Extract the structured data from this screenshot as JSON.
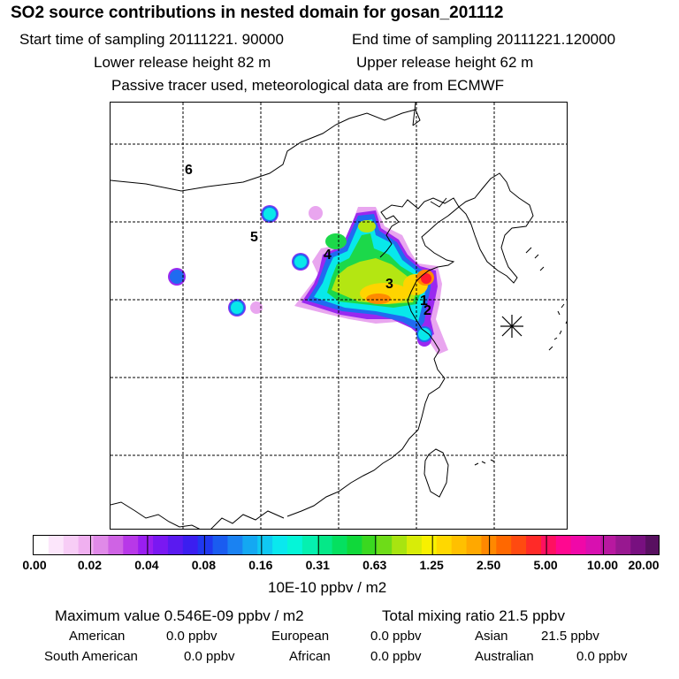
{
  "header": {
    "title": "SO2 source contributions in nested domain for gosan_201112",
    "start_time": "Start time of sampling 20111221. 90000",
    "end_time": "End time of sampling 20111221.120000",
    "lower_height": "Lower release height   82 m",
    "upper_height": "Upper release height   62 m",
    "tracer_note": "Passive tracer used, meteorological data are from ECMWF"
  },
  "map": {
    "source_labels": [
      "1",
      "2",
      "3",
      "4",
      "5",
      "6"
    ],
    "receptor_marker": "asterisk-icon"
  },
  "colorbar": {
    "ticks": [
      "0.00",
      "0.02",
      "0.04",
      "0.08",
      "0.16",
      "0.31",
      "0.63",
      "1.25",
      "2.50",
      "5.00",
      "10.00",
      "20.00"
    ],
    "unit": "10E-10 ppbv / m2",
    "colors": [
      "#ffffff",
      "#fce6fb",
      "#f7cdf6",
      "#f0b0f0",
      "#e08ae8",
      "#cf63e4",
      "#b838e8",
      "#9a1ef0",
      "#7a18f2",
      "#5a1af0",
      "#3b1ef0",
      "#2038f0",
      "#1a5cf0",
      "#1a82f2",
      "#14a8f2",
      "#10c8f2",
      "#0ae8ee",
      "#05f5d8",
      "#05f0b0",
      "#05e888",
      "#05e060",
      "#10d83a",
      "#3ad820",
      "#6edc18",
      "#a8e410",
      "#d8ec08",
      "#f8f000",
      "#ffd800",
      "#ffc000",
      "#ffa800",
      "#ff8800",
      "#ff6800",
      "#ff4a10",
      "#ff2a28",
      "#ff1060",
      "#ff0890",
      "#f008a8",
      "#d810b0",
      "#b818a0",
      "#981890",
      "#781080",
      "#581060"
    ]
  },
  "summary": {
    "max_value": "Maximum value  0.546E-09 ppbv / m2",
    "total_mixing": "Total mixing ratio       21.5 ppbv",
    "american_label": "American",
    "american_value": "0.0 ppbv",
    "european_label": "European",
    "european_value": "0.0 ppbv",
    "asian_label": "Asian",
    "asian_value": "21.5 ppbv",
    "south_american_label": "South American",
    "south_american_value": "0.0 ppbv",
    "african_label": "African",
    "african_value": "0.0 ppbv",
    "australian_label": "Australian",
    "australian_value": "0.0 ppbv"
  }
}
